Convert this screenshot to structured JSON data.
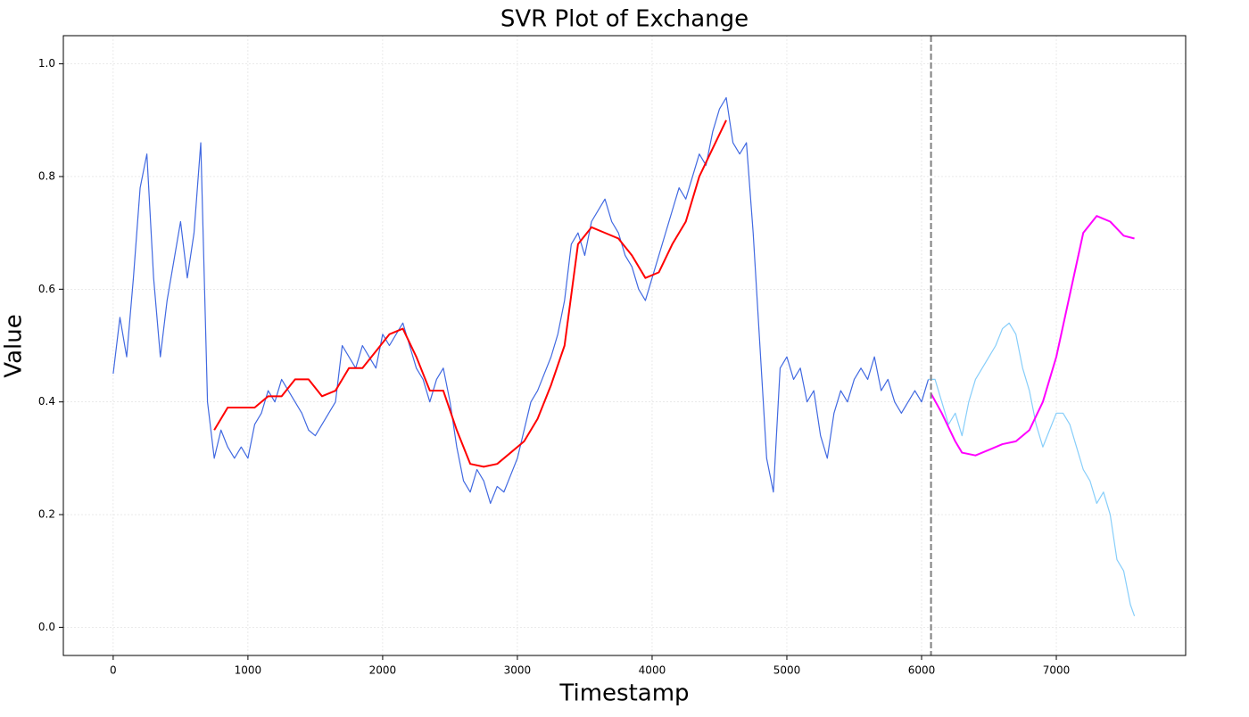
{
  "chart_data": {
    "type": "line",
    "title": "SVR Plot of Exchange",
    "x_label": "Timestamp",
    "y_label": "Value",
    "xlim": [
      -370,
      7960
    ],
    "ylim": [
      -0.05,
      1.05
    ],
    "xticks": [
      0,
      1000,
      2000,
      3000,
      4000,
      5000,
      6000,
      7000
    ],
    "yticks": [
      {
        "value": 0,
        "label": "0.0"
      },
      0.2,
      0.4,
      0.6,
      0.8,
      {
        "value": 1,
        "label": "1.0"
      }
    ],
    "grid": true,
    "vline_x": 6070,
    "vline_color": "#808080",
    "series": [
      {
        "color": "#4169e1",
        "width": 1.2,
        "x": [
          0,
          50,
          100,
          150,
          200,
          250,
          300,
          350,
          400,
          450,
          500,
          550,
          600,
          650,
          700,
          750,
          800,
          850,
          900,
          950,
          1000,
          1050,
          1100,
          1150,
          1200,
          1250,
          1300,
          1350,
          1400,
          1450,
          1500,
          1550,
          1600,
          1650,
          1700,
          1750,
          1800,
          1850,
          1900,
          1950,
          2000,
          2050,
          2100,
          2150,
          2200,
          2250,
          2300,
          2350,
          2400,
          2450,
          2500,
          2550,
          2600,
          2650,
          2700,
          2750,
          2800,
          2850,
          2900,
          2950,
          3000,
          3050,
          3100,
          3150,
          3200,
          3250,
          3300,
          3350,
          3400,
          3450,
          3500,
          3550,
          3600,
          3650,
          3700,
          3750,
          3800,
          3850,
          3900,
          3950,
          4000,
          4050,
          4100,
          4150,
          4200,
          4250,
          4300,
          4350,
          4400,
          4450,
          4500,
          4550,
          4600,
          4650,
          4700,
          4750,
          4800,
          4850,
          4900,
          4950,
          5000,
          5050,
          5100,
          5150,
          5200,
          5250,
          5300,
          5350,
          5400,
          5450,
          5500,
          5550,
          5600,
          5650,
          5700,
          5750,
          5800,
          5850,
          5900,
          5950,
          6000,
          6050
        ],
        "values": [
          0.45,
          0.55,
          0.48,
          0.62,
          0.78,
          0.84,
          0.62,
          0.48,
          0.58,
          0.65,
          0.72,
          0.62,
          0.7,
          0.86,
          0.4,
          0.3,
          0.35,
          0.32,
          0.3,
          0.32,
          0.3,
          0.36,
          0.38,
          0.42,
          0.4,
          0.44,
          0.42,
          0.4,
          0.38,
          0.35,
          0.34,
          0.36,
          0.38,
          0.4,
          0.5,
          0.48,
          0.46,
          0.5,
          0.48,
          0.46,
          0.52,
          0.5,
          0.52,
          0.54,
          0.5,
          0.46,
          0.44,
          0.4,
          0.44,
          0.46,
          0.4,
          0.32,
          0.26,
          0.24,
          0.28,
          0.26,
          0.22,
          0.25,
          0.24,
          0.27,
          0.3,
          0.35,
          0.4,
          0.42,
          0.45,
          0.48,
          0.52,
          0.58,
          0.68,
          0.7,
          0.66,
          0.72,
          0.74,
          0.76,
          0.72,
          0.7,
          0.66,
          0.64,
          0.6,
          0.58,
          0.62,
          0.66,
          0.7,
          0.74,
          0.78,
          0.76,
          0.8,
          0.84,
          0.82,
          0.88,
          0.92,
          0.94,
          0.86,
          0.84,
          0.86,
          0.7,
          0.5,
          0.3,
          0.24,
          0.46,
          0.48,
          0.44,
          0.46,
          0.4,
          0.42,
          0.34,
          0.3,
          0.38,
          0.42,
          0.4,
          0.44,
          0.46,
          0.44,
          0.48,
          0.42,
          0.44,
          0.4,
          0.38,
          0.4,
          0.42,
          0.4,
          0.44
        ]
      },
      {
        "color": "#ff0000",
        "width": 2,
        "x": [
          750,
          850,
          950,
          1050,
          1150,
          1250,
          1350,
          1450,
          1550,
          1650,
          1750,
          1850,
          1950,
          2050,
          2150,
          2250,
          2350,
          2450,
          2550,
          2650,
          2750,
          2850,
          2950,
          3050,
          3150,
          3250,
          3350,
          3450,
          3550,
          3650,
          3750,
          3850,
          3950,
          4050,
          4150,
          4250,
          4350,
          4450,
          4550
        ],
        "values": [
          0.35,
          0.39,
          0.39,
          0.39,
          0.41,
          0.41,
          0.44,
          0.44,
          0.41,
          0.42,
          0.46,
          0.46,
          0.49,
          0.52,
          0.53,
          0.48,
          0.42,
          0.42,
          0.35,
          0.29,
          0.285,
          0.29,
          0.31,
          0.33,
          0.37,
          0.43,
          0.5,
          0.68,
          0.71,
          0.7,
          0.69,
          0.66,
          0.62,
          0.63,
          0.68,
          0.72,
          0.8,
          0.85,
          0.9
        ]
      },
      {
        "color": "#87cefa",
        "width": 1.2,
        "x": [
          6050,
          6100,
          6150,
          6200,
          6250,
          6300,
          6350,
          6400,
          6450,
          6500,
          6550,
          6600,
          6650,
          6700,
          6750,
          6800,
          6850,
          6900,
          6950,
          7000,
          7050,
          7100,
          7150,
          7200,
          7250,
          7300,
          7350,
          7400,
          7450,
          7500,
          7550,
          7580
        ],
        "values": [
          0.44,
          0.44,
          0.4,
          0.36,
          0.38,
          0.34,
          0.4,
          0.44,
          0.46,
          0.48,
          0.5,
          0.53,
          0.54,
          0.52,
          0.46,
          0.42,
          0.36,
          0.32,
          0.35,
          0.38,
          0.38,
          0.36,
          0.32,
          0.28,
          0.26,
          0.22,
          0.24,
          0.2,
          0.12,
          0.1,
          0.04,
          0.02
        ]
      },
      {
        "color": "#ff00ff",
        "width": 2,
        "x": [
          6070,
          6150,
          6250,
          6300,
          6400,
          6500,
          6600,
          6700,
          6800,
          6900,
          7000,
          7100,
          7200,
          7300,
          7400,
          7500,
          7580
        ],
        "values": [
          0.415,
          0.38,
          0.33,
          0.31,
          0.305,
          0.315,
          0.325,
          0.33,
          0.35,
          0.4,
          0.48,
          0.59,
          0.7,
          0.73,
          0.72,
          0.695,
          0.69
        ]
      }
    ]
  }
}
